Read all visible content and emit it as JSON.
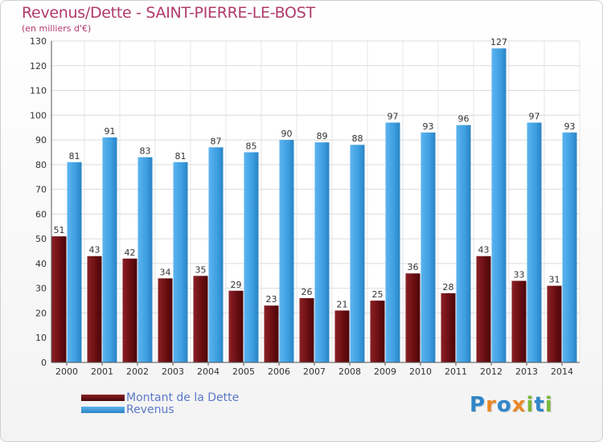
{
  "title": "Revenus/Dette - SAINT-PIERRE-LE-BOST",
  "subtitle": "(en milliers d'€)",
  "logo": {
    "text": "Proxiti",
    "letters": [
      {
        "ch": "P",
        "color": "#2f86c8"
      },
      {
        "ch": "r",
        "color": "#e8892a"
      },
      {
        "ch": "o",
        "color": "#2f86c8"
      },
      {
        "ch": "x",
        "color": "#e8892a"
      },
      {
        "ch": "i",
        "color": "#7ab83a"
      },
      {
        "ch": "t",
        "color": "#2f86c8"
      },
      {
        "ch": "i",
        "color": "#7ab83a"
      }
    ]
  },
  "chart_data": {
    "type": "bar",
    "title": "Revenus/Dette - SAINT-PIERRE-LE-BOST",
    "subtitle": "(en milliers d'€)",
    "categories": [
      "2000",
      "2001",
      "2002",
      "2003",
      "2004",
      "2005",
      "2006",
      "2007",
      "2008",
      "2009",
      "2010",
      "2011",
      "2012",
      "2013",
      "2014"
    ],
    "series": [
      {
        "name": "Montant de la Dette",
        "color": "#6b0e12",
        "values": [
          51,
          43,
          42,
          34,
          35,
          29,
          23,
          26,
          21,
          25,
          36,
          28,
          43,
          33,
          31
        ]
      },
      {
        "name": "Revenus",
        "color": "#3d9ee0",
        "values": [
          81,
          91,
          83,
          81,
          87,
          85,
          90,
          89,
          88,
          97,
          93,
          96,
          127,
          97,
          93
        ]
      }
    ],
    "ylim": [
      0,
      130
    ],
    "yticks": [
      0,
      10,
      20,
      30,
      40,
      50,
      60,
      70,
      80,
      90,
      100,
      110,
      120,
      130
    ],
    "grid": true,
    "legend_position": "bottom-left",
    "data_labels": true
  }
}
